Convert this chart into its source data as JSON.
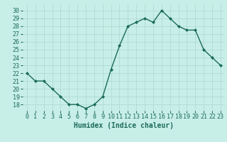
{
  "x": [
    0,
    1,
    2,
    3,
    4,
    5,
    6,
    7,
    8,
    9,
    10,
    11,
    12,
    13,
    14,
    15,
    16,
    17,
    18,
    19,
    20,
    21,
    22,
    23
  ],
  "y": [
    22,
    21,
    21,
    20,
    19,
    18,
    18,
    17.5,
    18,
    19,
    22.5,
    25.5,
    28,
    28.5,
    29,
    28.5,
    30,
    29,
    28,
    27.5,
    27.5,
    25,
    24,
    23
  ],
  "line_color": "#1a6b5a",
  "marker": "D",
  "marker_size": 2,
  "bg_color": "#c8eee8",
  "grid_color": "#aad8d0",
  "xlabel": "Humidex (Indice chaleur)",
  "xlim": [
    -0.5,
    23.5
  ],
  "ylim": [
    17.2,
    30.8
  ],
  "yticks": [
    18,
    19,
    20,
    21,
    22,
    23,
    24,
    25,
    26,
    27,
    28,
    29,
    30
  ],
  "xticks": [
    0,
    1,
    2,
    3,
    4,
    5,
    6,
    7,
    8,
    9,
    10,
    11,
    12,
    13,
    14,
    15,
    16,
    17,
    18,
    19,
    20,
    21,
    22,
    23
  ],
  "xlabel_fontsize": 7,
  "tick_fontsize": 6,
  "tick_color": "#1a6b5a",
  "xlabel_color": "#1a6b5a",
  "line_width": 1.0
}
